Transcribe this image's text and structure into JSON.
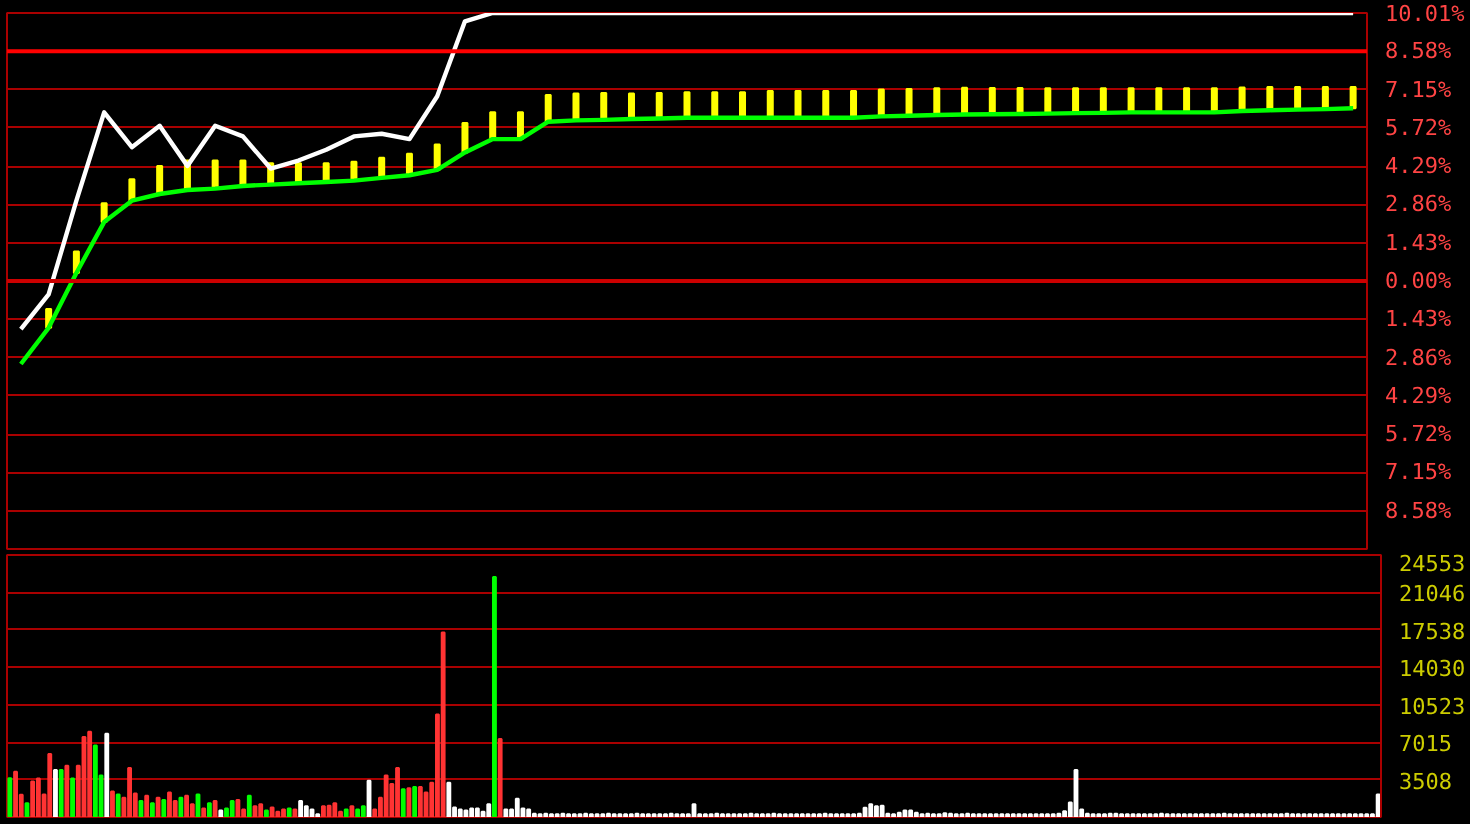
{
  "chart_data": [
    {
      "type": "line",
      "ylim": [
        -10.01,
        10.01
      ],
      "categories": [
        null,
        null,
        null,
        null,
        null,
        null,
        null,
        null,
        null,
        null,
        null,
        null,
        null,
        null,
        null,
        null,
        null,
        null,
        null,
        null,
        null,
        null,
        null,
        null,
        null,
        null,
        null,
        null,
        null,
        null,
        null,
        null,
        null,
        null,
        null,
        null,
        null,
        null,
        null,
        null,
        null,
        null,
        null,
        null,
        null,
        null,
        null,
        null,
        null
      ],
      "yticks": [
        {
          "value": 10.01,
          "label": "10.01%"
        },
        {
          "value": 8.58,
          "label": "8.58%"
        },
        {
          "value": 7.15,
          "label": "7.15%"
        },
        {
          "value": 5.72,
          "label": "5.72%"
        },
        {
          "value": 4.29,
          "label": "4.29%"
        },
        {
          "value": 2.86,
          "label": "2.86%"
        },
        {
          "value": 1.43,
          "label": "1.43%"
        },
        {
          "value": 0,
          "label": "0.00%"
        },
        {
          "value": -1.43,
          "label": "1.43%"
        },
        {
          "value": -2.86,
          "label": "2.86%"
        },
        {
          "value": -4.29,
          "label": "4.29%"
        },
        {
          "value": -5.72,
          "label": "5.72%"
        },
        {
          "value": -7.15,
          "label": "7.15%"
        },
        {
          "value": -8.58,
          "label": "8.58%"
        }
      ],
      "tick_labels": "y",
      "grid": "y",
      "ref_lines": [
        {
          "axis": "y",
          "value": 8.58,
          "color": "#ff0000"
        },
        {
          "axis": "y",
          "value": 0,
          "color": "#cc0000"
        }
      ],
      "series": [
        {
          "type": "bar",
          "color": "#ffff00",
          "base": [
            null,
            -1.75,
            0.3,
            2.2,
            3.0,
            3.25,
            3.4,
            3.45,
            3.55,
            3.6,
            3.65,
            3.7,
            3.75,
            3.85,
            3.95,
            4.15,
            4.8,
            5.3,
            5.3,
            5.95,
            6.0,
            6.02,
            6.05,
            6.07,
            6.1,
            6.1,
            6.1,
            6.1,
            6.1,
            6.1,
            6.1,
            6.15,
            6.17,
            6.2,
            6.22,
            6.23,
            6.24,
            6.25,
            6.27,
            6.28,
            6.3,
            6.3,
            6.3,
            6.3,
            6.35,
            6.38,
            6.4,
            6.42,
            6.45
          ],
          "values": [
            null,
            0.7,
            0.8,
            0.7,
            0.8,
            1.05,
            1.1,
            1.05,
            0.95,
            0.8,
            0.75,
            0.7,
            0.7,
            0.75,
            0.8,
            0.95,
            1.1,
            1.0,
            1.0,
            1.0,
            1.0,
            1.0,
            0.95,
            0.95,
            0.95,
            0.95,
            0.95,
            1.0,
            1.0,
            1.0,
            1.0,
            1.0,
            1.0,
            1.0,
            1.0,
            0.98,
            0.97,
            0.95,
            0.93,
            0.92,
            0.9,
            0.9,
            0.9,
            0.9,
            0.88,
            0.87,
            0.85,
            0.83,
            0.8
          ]
        },
        {
          "type": "line",
          "color": "#00ff00",
          "values": [
            -3.1,
            -1.75,
            0.3,
            2.2,
            3.0,
            3.25,
            3.4,
            3.45,
            3.55,
            3.6,
            3.65,
            3.7,
            3.75,
            3.85,
            3.95,
            4.15,
            4.8,
            5.3,
            5.3,
            5.95,
            6.0,
            6.02,
            6.05,
            6.07,
            6.1,
            6.1,
            6.1,
            6.1,
            6.1,
            6.1,
            6.1,
            6.15,
            6.17,
            6.2,
            6.22,
            6.23,
            6.24,
            6.25,
            6.27,
            6.28,
            6.3,
            6.3,
            6.3,
            6.3,
            6.35,
            6.38,
            6.4,
            6.42,
            6.45
          ]
        },
        {
          "type": "line",
          "color": "#ffffff",
          "values": [
            -1.8,
            -0.5,
            3.0,
            6.3,
            5.0,
            5.8,
            4.3,
            5.8,
            5.4,
            4.2,
            4.5,
            4.9,
            5.4,
            5.5,
            5.3,
            6.9,
            9.7,
            10.01,
            10.01,
            10.01,
            10.01,
            10.01,
            10.01,
            10.01,
            10.01,
            10.01,
            10.01,
            10.01,
            10.01,
            10.01,
            10.01,
            10.01,
            10.01,
            10.01,
            10.01,
            10.01,
            10.01,
            10.01,
            10.01,
            10.01,
            10.01,
            10.01,
            10.01,
            10.01,
            10.01,
            10.01,
            10.01,
            10.01,
            10.01
          ]
        }
      ]
    },
    {
      "type": "bar",
      "ylim": [
        0,
        24553
      ],
      "categories": [
        null,
        null,
        null,
        null,
        null,
        null,
        null,
        null,
        null,
        null,
        null,
        null,
        null,
        null,
        null,
        null,
        null,
        null,
        null,
        null,
        null,
        null,
        null,
        null,
        null,
        null,
        null,
        null,
        null,
        null,
        null,
        null,
        null,
        null,
        null,
        null,
        null,
        null,
        null,
        null,
        null,
        null,
        null,
        null,
        null,
        null,
        null,
        null,
        null,
        null,
        null,
        null,
        null,
        null,
        null,
        null,
        null,
        null,
        null,
        null,
        null,
        null,
        null,
        null,
        null,
        null,
        null,
        null,
        null,
        null,
        null,
        null,
        null,
        null,
        null,
        null,
        null,
        null,
        null,
        null,
        null,
        null,
        null,
        null,
        null,
        null,
        null,
        null,
        null,
        null,
        null,
        null,
        null,
        null,
        null,
        null,
        null,
        null,
        null,
        null,
        null,
        null,
        null,
        null,
        null,
        null,
        null,
        null,
        null,
        null,
        null,
        null,
        null,
        null,
        null,
        null,
        null,
        null,
        null,
        null,
        null,
        null,
        null,
        null,
        null,
        null,
        null,
        null,
        null,
        null,
        null,
        null,
        null,
        null,
        null,
        null,
        null,
        null,
        null,
        null,
        null,
        null,
        null,
        null,
        null,
        null,
        null,
        null,
        null,
        null,
        null,
        null,
        null,
        null,
        null,
        null,
        null,
        null,
        null,
        null,
        null,
        null,
        null,
        null,
        null,
        null,
        null,
        null,
        null,
        null,
        null,
        null,
        null,
        null,
        null,
        null,
        null,
        null,
        null,
        null,
        null,
        null,
        null,
        null,
        null,
        null,
        null,
        null,
        null,
        null,
        null,
        null,
        null,
        null,
        null,
        null,
        null,
        null,
        null,
        null,
        null,
        null,
        null,
        null,
        null,
        null,
        null,
        null,
        null,
        null,
        null,
        null,
        null,
        null,
        null,
        null,
        null,
        null,
        null,
        null,
        null,
        null,
        null,
        null,
        null,
        null,
        null,
        null,
        null,
        null,
        null,
        null,
        null,
        null,
        null,
        null,
        null,
        null,
        null,
        null,
        null
      ],
      "yticks": [
        3508,
        7015,
        10523,
        14030,
        17538,
        21046,
        24553
      ],
      "tick_labels": "y",
      "grid": "y",
      "values": [
        3630,
        4240,
        2090,
        1290,
        3320,
        3600,
        2100,
        5900,
        4400,
        4400,
        4800,
        3600,
        4800,
        7500,
        8000,
        6700,
        3900,
        7800,
        2400,
        2100,
        1800,
        4600,
        2200,
        1500,
        2000,
        1300,
        1800,
        1600,
        2300,
        1500,
        1800,
        2000,
        1200,
        2100,
        800,
        1300,
        1500,
        600,
        800,
        1500,
        1600,
        700,
        2000,
        1000,
        1200,
        600,
        900,
        500,
        700,
        800,
        700,
        1500,
        1000,
        700,
        250,
        1000,
        1050,
        1300,
        500,
        700,
        1000,
        700,
        1000,
        3400,
        700,
        1800,
        3900,
        3100,
        4600,
        2600,
        2700,
        2800,
        2800,
        2300,
        3200,
        9600,
        17300,
        3200,
        900,
        700,
        600,
        800,
        800,
        500,
        1200,
        22500,
        7300,
        700,
        700,
        1700,
        800,
        700,
        300,
        250,
        300,
        250,
        250,
        300,
        250,
        250,
        250,
        300,
        250,
        250,
        250,
        300,
        250,
        250,
        250,
        250,
        300,
        250,
        250,
        250,
        250,
        250,
        300,
        250,
        250,
        250,
        1200,
        250,
        250,
        250,
        300,
        250,
        250,
        250,
        250,
        250,
        300,
        250,
        250,
        250,
        300,
        250,
        250,
        250,
        250,
        250,
        250,
        250,
        250,
        300,
        250,
        250,
        250,
        250,
        250,
        300,
        860,
        1200,
        1000,
        1050,
        300,
        250,
        400,
        600,
        600,
        400,
        250,
        300,
        250,
        250,
        350,
        300,
        250,
        250,
        300,
        250,
        250,
        250,
        250,
        250,
        250,
        250,
        250,
        250,
        250,
        250,
        250,
        250,
        250,
        250,
        300,
        550,
        1350,
        4400,
        700,
        300,
        250,
        250,
        250,
        300,
        300,
        250,
        250,
        250,
        250,
        250,
        250,
        250,
        300,
        250,
        250,
        250,
        250,
        250,
        250,
        250,
        250,
        250,
        250,
        300,
        250,
        250,
        250,
        250,
        250,
        250,
        250,
        250,
        250,
        250,
        300,
        250,
        250,
        250,
        250,
        250,
        250,
        250,
        250,
        250,
        250,
        250,
        250,
        250,
        250,
        250,
        2100
      ],
      "colors": [
        "#00ff00",
        "#ff3333",
        "#ff3333",
        "#00ff00",
        "#ff3333",
        "#ff3333",
        "#ff3333",
        "#ff3333",
        "#ffffff",
        "#00ff00",
        "#ff3333",
        "#00ff00",
        "#ff3333",
        "#ff3333",
        "#ff3333",
        "#00ff00",
        "#00ff00",
        "#ffffff",
        "#ff3333",
        "#00ff00",
        "#ff3333",
        "#ff3333",
        "#ff3333",
        "#00ff00",
        "#ff3333",
        "#00ff00",
        "#ff3333",
        "#00ff00",
        "#ff3333",
        "#ff3333",
        "#00ff00",
        "#ff3333",
        "#ff3333",
        "#00ff00",
        "#ff3333",
        "#00ff00",
        "#ff3333",
        "#ffffff",
        "#00ff00",
        "#00ff00",
        "#ff3333",
        "#ff3333",
        "#00ff00",
        "#ff3333",
        "#ff3333",
        "#00ff00",
        "#ff3333",
        "#ff3333",
        "#ff3333",
        "#00ff00",
        "#ff3333",
        "#ffffff",
        "#ffffff",
        "#ffffff",
        "#ffffff",
        "#ff3333",
        "#ff3333",
        "#ff3333",
        "#ff3333",
        "#00ff00",
        "#ff3333",
        "#00ff00",
        "#00ff00",
        "#ffffff",
        "#ff3333",
        "#ff3333",
        "#ff3333",
        "#ff3333",
        "#ff3333",
        "#00ff00",
        "#ff3333",
        "#00ff00",
        "#ff3333",
        "#ff3333",
        "#ff3333",
        "#ff3333",
        "#ff3333",
        "#ffffff",
        "#ffffff",
        "#ffffff",
        "#ffffff",
        "#ffffff",
        "#ffffff",
        "#ffffff",
        "#ffffff",
        "#00ff00",
        "#ff3333",
        "#ffffff",
        "#ffffff",
        "#ffffff",
        "#ffffff",
        "#ffffff",
        "#ffffff",
        "#ffffff",
        "#ffffff",
        "#ffffff",
        "#ffffff",
        "#ffffff",
        "#ffffff",
        "#ffffff",
        "#ffffff",
        "#ffffff",
        "#ffffff",
        "#ffffff",
        "#ffffff",
        "#ffffff",
        "#ffffff",
        "#ffffff",
        "#ffffff",
        "#ffffff",
        "#ffffff",
        "#ffffff",
        "#ffffff",
        "#ffffff",
        "#ffffff",
        "#ffffff",
        "#ffffff",
        "#ffffff",
        "#ffffff",
        "#ffffff",
        "#ffffff",
        "#ffffff",
        "#ffffff",
        "#ffffff",
        "#ffffff",
        "#ffffff",
        "#ffffff",
        "#ffffff",
        "#ffffff",
        "#ffffff",
        "#ffffff",
        "#ffffff",
        "#ffffff",
        "#ffffff",
        "#ffffff",
        "#ffffff",
        "#ffffff",
        "#ffffff",
        "#ffffff",
        "#ffffff",
        "#ffffff",
        "#ffffff",
        "#ffffff",
        "#ffffff",
        "#ffffff",
        "#ffffff",
        "#ffffff",
        "#ffffff",
        "#ffffff",
        "#ffffff",
        "#ffffff",
        "#ffffff",
        "#ffffff",
        "#ffffff",
        "#ffffff",
        "#ffffff",
        "#ffffff",
        "#ffffff",
        "#ffffff",
        "#ffffff",
        "#ffffff",
        "#ffffff",
        "#ffffff",
        "#ffffff",
        "#ffffff",
        "#ffffff",
        "#ffffff",
        "#ffffff",
        "#ffffff",
        "#ffffff",
        "#ffffff",
        "#ffffff",
        "#ffffff",
        "#ffffff",
        "#ffffff",
        "#ffffff",
        "#ffffff",
        "#ffffff",
        "#ffffff",
        "#ffffff",
        "#ffffff",
        "#ffffff",
        "#ffffff",
        "#ffffff",
        "#ffffff",
        "#ffffff",
        "#ffffff",
        "#ffffff",
        "#ffffff",
        "#ffffff",
        "#ffffff",
        "#ffffff",
        "#ffffff",
        "#ffffff",
        "#ffffff",
        "#ffffff",
        "#ffffff",
        "#ffffff",
        "#ffffff",
        "#ffffff",
        "#ffffff",
        "#ffffff",
        "#ffffff",
        "#ffffff",
        "#ffffff",
        "#ffffff",
        "#ffffff",
        "#ffffff",
        "#ffffff",
        "#ffffff",
        "#ffffff",
        "#ffffff",
        "#ffffff",
        "#ffffff",
        "#ffffff",
        "#ffffff",
        "#ffffff",
        "#ffffff",
        "#ffffff",
        "#ffffff",
        "#ffffff",
        "#ffffff",
        "#ffffff",
        "#ffffff",
        "#ffffff",
        "#ffffff",
        "#ffffff",
        "#ffffff",
        "#ffffff",
        "#ffffff",
        "#ffffff",
        "#ffffff",
        "#ffffff",
        "#ffffff",
        "#ffffff",
        "#ffffff",
        "#ffffff",
        "#ffffff",
        "#ffffff",
        "#ffffff",
        "#ffffff"
      ]
    }
  ]
}
